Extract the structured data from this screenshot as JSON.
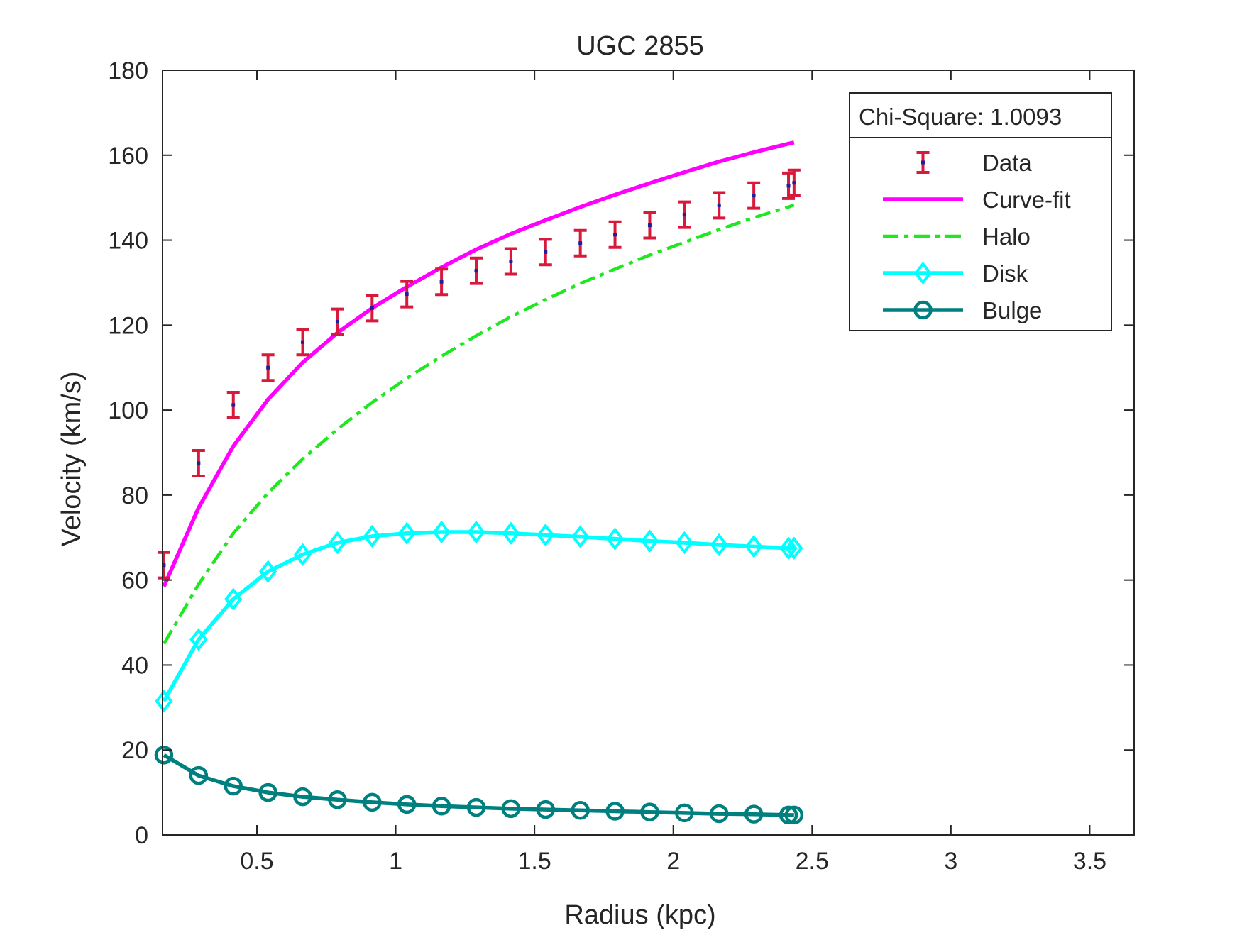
{
  "chart_data": {
    "type": "line",
    "title": "UGC 2855",
    "xlabel": "Radius (kpc)",
    "ylabel": "Velocity (km/s)",
    "xlim": [
      0.16,
      3.66
    ],
    "ylim": [
      0,
      180
    ],
    "xticks": [
      0.5,
      1,
      1.5,
      2,
      2.5,
      3,
      3.5
    ],
    "xtick_labels": [
      "0.5",
      "1",
      "1.5",
      "2",
      "2.5",
      "3",
      "3.5"
    ],
    "yticks": [
      0,
      20,
      40,
      60,
      80,
      100,
      120,
      140,
      160,
      180
    ],
    "ytick_labels": [
      "0",
      "20",
      "40",
      "60",
      "80",
      "100",
      "120",
      "140",
      "160",
      "180"
    ],
    "grid": false,
    "legend_position": "top-right",
    "legend_header": "Chi-Square: 1.0093",
    "x": [
      0.165,
      0.29,
      0.415,
      0.54,
      0.665,
      0.79,
      0.915,
      1.04,
      1.165,
      1.29,
      1.415,
      1.54,
      1.665,
      1.79,
      1.915,
      2.04,
      2.165,
      2.29,
      2.415,
      2.435
    ],
    "data": {
      "name": "Data",
      "color": "#d7193c",
      "values": [
        63.5,
        87.5,
        101.2,
        110.0,
        116.0,
        120.8,
        124.0,
        127.3,
        130.2,
        132.8,
        135.0,
        137.2,
        139.3,
        141.3,
        143.5,
        146.0,
        148.2,
        150.5,
        152.8,
        153.5
      ],
      "error": [
        3,
        3,
        3,
        3,
        3,
        3,
        3,
        3,
        3,
        3,
        3,
        3,
        3,
        3,
        3,
        3,
        3,
        3,
        3,
        3
      ]
    },
    "series": [
      {
        "name": "Curve-fit",
        "color": "#ff00ff",
        "style": "solid",
        "marker": "none",
        "values": [
          58.5,
          77.0,
          91.5,
          102.5,
          111.2,
          118.2,
          124.0,
          129.0,
          133.6,
          137.8,
          141.5,
          144.7,
          147.8,
          150.7,
          153.4,
          156.0,
          158.5,
          160.7,
          162.7,
          163.0
        ]
      },
      {
        "name": "Halo",
        "color": "#1ee81e",
        "style": "dashdot",
        "marker": "none",
        "values": [
          45.0,
          59.0,
          71.0,
          80.5,
          88.5,
          95.5,
          101.8,
          107.5,
          112.7,
          117.5,
          122.0,
          126.0,
          129.8,
          133.2,
          136.5,
          139.5,
          142.5,
          145.3,
          147.8,
          148.3
        ]
      },
      {
        "name": "Disk",
        "color": "#00ffff",
        "style": "solid",
        "marker": "diamond",
        "values": [
          31.5,
          46.0,
          55.5,
          62.0,
          66.0,
          68.8,
          70.3,
          71.0,
          71.3,
          71.3,
          71.0,
          70.6,
          70.2,
          69.7,
          69.2,
          68.8,
          68.3,
          67.9,
          67.5,
          67.5
        ]
      },
      {
        "name": "Bulge",
        "color": "#007f7f",
        "style": "solid",
        "marker": "circle",
        "values": [
          18.8,
          14.0,
          11.5,
          10.0,
          9.0,
          8.3,
          7.7,
          7.2,
          6.8,
          6.5,
          6.2,
          6.0,
          5.8,
          5.6,
          5.4,
          5.2,
          5.0,
          4.9,
          4.7,
          4.7
        ]
      }
    ]
  }
}
